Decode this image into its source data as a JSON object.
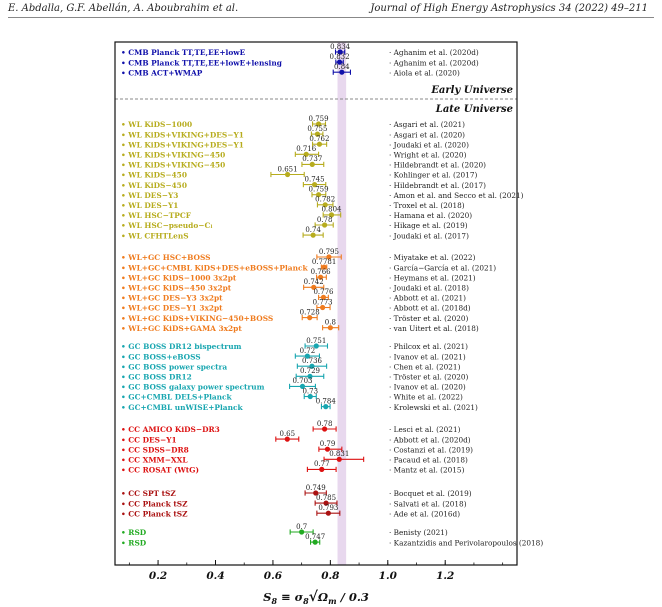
{
  "header": {
    "left": "E. Abdalla, G.F. Abellán, A. Aboubrahim et al.",
    "right": "Journal of High Energy Astrophysics 34 (2022) 49–211"
  },
  "chart_data": {
    "type": "forest",
    "xlabel": "S₈ ≡ σ₈ √(Ωₘ / 0.3)",
    "xlabel_main": "S",
    "xlabel_sub": "8",
    "xlabel_mid": " ≡ σ",
    "xlabel_sub2": "8",
    "xlabel_root": "√",
    "xlabel_om": "Ω",
    "xlabel_om_sub": "m",
    "xlabel_tail": " / 0.3",
    "xlim": [
      0.05,
      1.45
    ],
    "xticks": [
      "0.2",
      "0.4",
      "0.6",
      "0.8",
      "1.0",
      "1.2"
    ],
    "xtick_values": [
      0.2,
      0.4,
      0.6,
      0.8,
      1.0,
      1.2
    ],
    "reference_band": [
      0.825,
      0.855
    ],
    "sections": {
      "early": "Early Universe",
      "late": "Late Universe"
    },
    "colors": {
      "cmb": "#1010aa",
      "wl": "#b7ac1e",
      "wlgc": "#ef7b1e",
      "gc": "#18a6b0",
      "cc": "#dd1111",
      "cc2": "#aa1111",
      "rsd": "#22aa22",
      "band": "#e8d8ee"
    },
    "groups": [
      {
        "color": "cmb",
        "rows": [
          {
            "label": "CMB Planck TT,TE,EE+lowE",
            "value": 0.834,
            "err_lo": 0.016,
            "err_hi": 0.016,
            "annot": "0.834",
            "ref": "Aghanim et al. (2020d)"
          },
          {
            "label": "CMB Planck TT,TE,EE+lowE+lensing",
            "value": 0.832,
            "err_lo": 0.013,
            "err_hi": 0.013,
            "annot": "0.832",
            "ref": "Aghanim et al. (2020d)"
          },
          {
            "label": "CMB ACT+WMAP",
            "value": 0.84,
            "err_lo": 0.03,
            "err_hi": 0.03,
            "annot": "0.84",
            "ref": "Aiola et al. (2020)"
          }
        ]
      },
      {
        "color": "wl",
        "rows": [
          {
            "label": "WL KiDS−1000",
            "value": 0.759,
            "err_lo": 0.021,
            "err_hi": 0.024,
            "annot": "0.759",
            "ref": "Asgari et al. (2021)"
          },
          {
            "label": "WL KiDS+VIKING+DES−Y1",
            "value": 0.755,
            "err_lo": 0.021,
            "err_hi": 0.019,
            "annot": "0.755",
            "ref": "Asgari et al. (2020)"
          },
          {
            "label": "WL KiDS+VIKING+DES−Y1",
            "value": 0.762,
            "err_lo": 0.024,
            "err_hi": 0.025,
            "annot": "0.762",
            "ref": "Joudaki et al. (2020)"
          },
          {
            "label": "WL KiDS+VIKING−450",
            "value": 0.716,
            "err_lo": 0.038,
            "err_hi": 0.043,
            "annot": "0.716",
            "ref": "Wright et al. (2020)"
          },
          {
            "label": "WL KiDS+VIKING−450",
            "value": 0.737,
            "err_lo": 0.036,
            "err_hi": 0.04,
            "annot": "0.737",
            "ref": "Hildebrandt et al. (2020)"
          },
          {
            "label": "WL KiDS−450",
            "value": 0.651,
            "err_lo": 0.058,
            "err_hi": 0.058,
            "annot": "0.651",
            "ref": "Kohlinger et al. (2017)"
          },
          {
            "label": "WL KiDS−450",
            "value": 0.745,
            "err_lo": 0.039,
            "err_hi": 0.039,
            "annot": "0.745",
            "ref": "Hildebrandt et al. (2017)"
          },
          {
            "label": "WL DES−Y3",
            "value": 0.759,
            "err_lo": 0.023,
            "err_hi": 0.025,
            "annot": "0.759",
            "ref": "Amon et al. and Secco et al. (2021)"
          },
          {
            "label": "WL DES−Y1",
            "value": 0.782,
            "err_lo": 0.027,
            "err_hi": 0.027,
            "annot": "0.782",
            "ref": "Troxel et al. (2018)"
          },
          {
            "label": "WL HSC−TPCF",
            "value": 0.804,
            "err_lo": 0.029,
            "err_hi": 0.032,
            "annot": "0.804",
            "ref": "Hamana et al. (2020)"
          },
          {
            "label": "WL HSC−pseudo−Cₗ",
            "value": 0.78,
            "err_lo": 0.033,
            "err_hi": 0.03,
            "annot": "0.78",
            "ref": "Hikage et al. (2019)"
          },
          {
            "label": "WL CFHTLenS",
            "value": 0.74,
            "err_lo": 0.035,
            "err_hi": 0.035,
            "annot": "0.74",
            "ref": "Joudaki et al. (2017)"
          }
        ]
      },
      {
        "color": "wlgc",
        "rows": [
          {
            "label": "WL+GC HSC+BOSS",
            "value": 0.795,
            "err_lo": 0.042,
            "err_hi": 0.043,
            "annot": "0.795",
            "ref": "Miyatake et al. (2022)"
          },
          {
            "label": "WL+GC+CMBL KiDS+DES+eBOSS+Planck",
            "value": 0.7781,
            "err_lo": 0.0094,
            "err_hi": 0.0094,
            "annot": "0.7781",
            "ref": "García−García et al. (2021)"
          },
          {
            "label": "WL+GC KiDS−1000 3x2pt",
            "value": 0.766,
            "err_lo": 0.014,
            "err_hi": 0.02,
            "annot": "0.766",
            "ref": "Heymans et al. (2021)"
          },
          {
            "label": "WL+GC KiDS−450 3x2pt",
            "value": 0.742,
            "err_lo": 0.035,
            "err_hi": 0.035,
            "annot": "0.742",
            "ref": "Joudaki et al. (2018)"
          },
          {
            "label": "WL+GC DES−Y3 3x2pt",
            "value": 0.776,
            "err_lo": 0.017,
            "err_hi": 0.017,
            "annot": "0.776",
            "ref": "Abbott et al. (2021)"
          },
          {
            "label": "WL+GC DES−Y1 3x2pt",
            "value": 0.773,
            "err_lo": 0.02,
            "err_hi": 0.026,
            "annot": "0.773",
            "ref": "Abbott et al. (2018d)"
          },
          {
            "label": "WL+GC KiDS+VIKING−450+BOSS",
            "value": 0.728,
            "err_lo": 0.026,
            "err_hi": 0.026,
            "annot": "0.728",
            "ref": "Tröster et al. (2020)"
          },
          {
            "label": "WL+GC KiDS+GAMA 3x2pt",
            "value": 0.8,
            "err_lo": 0.027,
            "err_hi": 0.029,
            "annot": "0.8",
            "ref": "van Uitert et al. (2018)"
          }
        ]
      },
      {
        "color": "gc",
        "rows": [
          {
            "label": "GC BOSS DR12 bispectrum",
            "value": 0.751,
            "err_lo": 0.039,
            "err_hi": 0.039,
            "annot": "0.751",
            "ref": "Philcox et al. (2021)"
          },
          {
            "label": "GC BOSS+eBOSS",
            "value": 0.72,
            "err_lo": 0.042,
            "err_hi": 0.042,
            "annot": "0.72",
            "ref": "Ivanov et al. (2021)"
          },
          {
            "label": "GC BOSS power spectra",
            "value": 0.736,
            "err_lo": 0.051,
            "err_hi": 0.051,
            "annot": "0.736",
            "ref": "Chen et al. (2021)"
          },
          {
            "label": "GC BOSS DR12",
            "value": 0.729,
            "err_lo": 0.048,
            "err_hi": 0.048,
            "annot": "0.729",
            "ref": "Tröster et al. (2020)"
          },
          {
            "label": "GC BOSS galaxy power spectrum",
            "value": 0.703,
            "err_lo": 0.045,
            "err_hi": 0.045,
            "annot": "0.703",
            "ref": "Ivanov et al. (2020)"
          },
          {
            "label": "GC+CMBL DELS+Planck",
            "value": 0.73,
            "err_lo": 0.021,
            "err_hi": 0.021,
            "annot": "0.73",
            "ref": "White et al. (2022)"
          },
          {
            "label": "GC+CMBL unWISE+Planck",
            "value": 0.784,
            "err_lo": 0.015,
            "err_hi": 0.015,
            "annot": "0.784",
            "ref": "Krolewski et al. (2021)"
          }
        ]
      },
      {
        "color": "cc",
        "rows": [
          {
            "label": "CC AMICO KiDS−DR3",
            "value": 0.78,
            "err_lo": 0.04,
            "err_hi": 0.04,
            "annot": "0.78",
            "ref": "Lesci et al. (2021)"
          },
          {
            "label": "CC DES−Y1",
            "value": 0.65,
            "err_lo": 0.04,
            "err_hi": 0.04,
            "annot": "0.65",
            "ref": "Abbott et al. (2020d)"
          },
          {
            "label": "CC SDSS−DR8",
            "value": 0.79,
            "err_lo": 0.03,
            "err_hi": 0.05,
            "annot": "0.79",
            "ref": "Costanzi et al. (2019)"
          },
          {
            "label": "CC XMM−XXL",
            "value": 0.831,
            "err_lo": 0.053,
            "err_hi": 0.085,
            "annot": "0.831",
            "ref": "Pacaud et al. (2018)"
          },
          {
            "label": "CC ROSAT (WtG)",
            "value": 0.77,
            "err_lo": 0.05,
            "err_hi": 0.05,
            "annot": "0.77",
            "ref": "Mantz et al. (2015)"
          }
        ]
      },
      {
        "color": "cc2",
        "rows": [
          {
            "label": "CC SPT tSZ",
            "value": 0.749,
            "err_lo": 0.037,
            "err_hi": 0.037,
            "annot": "0.749",
            "ref": "Bocquet et al. (2019)"
          },
          {
            "label": "CC Planck tSZ",
            "value": 0.785,
            "err_lo": 0.038,
            "err_hi": 0.038,
            "annot": "0.785",
            "ref": "Salvati et al. (2018)"
          },
          {
            "label": "CC Planck tSZ",
            "value": 0.793,
            "err_lo": 0.04,
            "err_hi": 0.04,
            "annot": "0.793",
            "ref": "Ade et al. (2016d)"
          }
        ]
      },
      {
        "color": "rsd",
        "rows": [
          {
            "label": "RSD",
            "value": 0.7,
            "err_lo": 0.04,
            "err_hi": 0.04,
            "annot": "0.7",
            "ref": "Benisty (2021)"
          },
          {
            "label": "RSD",
            "value": 0.747,
            "err_lo": 0.016,
            "err_hi": 0.016,
            "annot": "0.747",
            "ref": "Kazantzidis and Perivolaropoulos (2018)"
          }
        ]
      }
    ]
  }
}
